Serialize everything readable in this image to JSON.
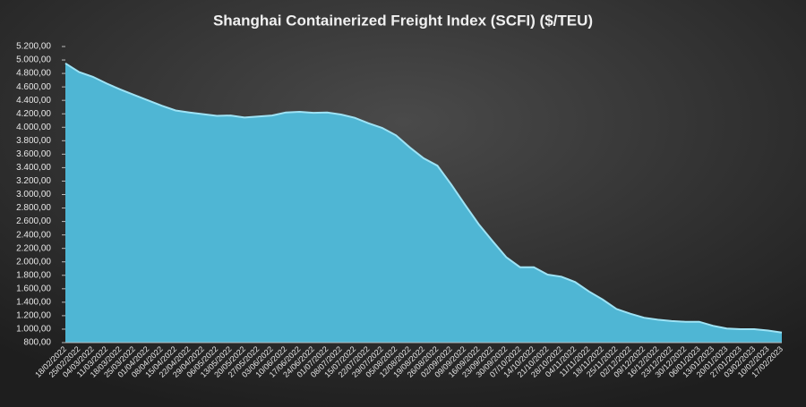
{
  "chart_data": {
    "type": "area",
    "title": "Shanghai  Containerized Freight Index  (SCFI) ($/TEU)",
    "categories": [
      "18/02/2022",
      "25/02/2022",
      "04/03/2022",
      "11/03/2022",
      "18/03/2022",
      "25/03/2022",
      "01/04/2022",
      "08/04/2022",
      "15/04/2022",
      "22/04/2022",
      "29/04/2022",
      "06/05/2022",
      "13/05/2022",
      "20/05/2022",
      "27/05/2022",
      "03/06/2022",
      "10/06/2022",
      "17/06/2022",
      "24/06/2022",
      "01/07/2022",
      "08/07/2022",
      "15/07/2022",
      "22/07/2022",
      "29/07/2022",
      "05/08/2022",
      "12/08/2022",
      "19/08/2022",
      "26/08/2022",
      "02/09/2022",
      "09/09/2022",
      "16/09/2022",
      "23/09/2022",
      "30/09/2022",
      "07/10/2022",
      "14/10/2022",
      "21/10/2022",
      "28/10/2022",
      "04/11/2022",
      "11/11/2022",
      "18/11/2022",
      "25/11/2022",
      "02/12/2022",
      "09/12/2022",
      "16/12/2022",
      "23/12/2022",
      "30/12/2022",
      "06/01/2023",
      "13/01/2023",
      "20/01/2023",
      "27/01/2023",
      "03/02/2023",
      "10/02/2023",
      "17/02/2023"
    ],
    "values": [
      4950,
      4820,
      4750,
      4650,
      4560,
      4480,
      4400,
      4320,
      4250,
      4220,
      4195,
      4170,
      4175,
      4145,
      4160,
      4175,
      4220,
      4230,
      4215,
      4220,
      4190,
      4140,
      4060,
      3990,
      3880,
      3700,
      3540,
      3430,
      3150,
      2850,
      2560,
      2310,
      2070,
      1920,
      1920,
      1810,
      1780,
      1700,
      1560,
      1440,
      1300,
      1230,
      1170,
      1140,
      1120,
      1110,
      1110,
      1050,
      1010,
      1000,
      1000,
      980,
      950
    ],
    "color": "#4fb6d4",
    "ylim": [
      800,
      5200
    ],
    "yticks": [
      {
        "value": 800,
        "label": "800,00"
      },
      {
        "value": 1000,
        "label": "1.000,00"
      },
      {
        "value": 1200,
        "label": "1.200,00"
      },
      {
        "value": 1400,
        "label": "1.400,00"
      },
      {
        "value": 1600,
        "label": "1.600,00"
      },
      {
        "value": 1800,
        "label": "1.800,00"
      },
      {
        "value": 2000,
        "label": "2.000,00"
      },
      {
        "value": 2200,
        "label": "2.200,00"
      },
      {
        "value": 2400,
        "label": "2.400,00"
      },
      {
        "value": 2600,
        "label": "2.600,00"
      },
      {
        "value": 2800,
        "label": "2.800,00"
      },
      {
        "value": 3000,
        "label": "3.000,00"
      },
      {
        "value": 3200,
        "label": "3.200,00"
      },
      {
        "value": 3400,
        "label": "3.400,00"
      },
      {
        "value": 3600,
        "label": "3.600,00"
      },
      {
        "value": 3800,
        "label": "3.800,00"
      },
      {
        "value": 4000,
        "label": "4.000,00"
      },
      {
        "value": 4200,
        "label": "4.200,00"
      },
      {
        "value": 4400,
        "label": "4.400,00"
      },
      {
        "value": 4600,
        "label": "4.600,00"
      },
      {
        "value": 4800,
        "label": "4.800,00"
      },
      {
        "value": 5000,
        "label": "5.000,00"
      },
      {
        "value": 5200,
        "label": "5.200,00"
      }
    ],
    "grid": false
  }
}
